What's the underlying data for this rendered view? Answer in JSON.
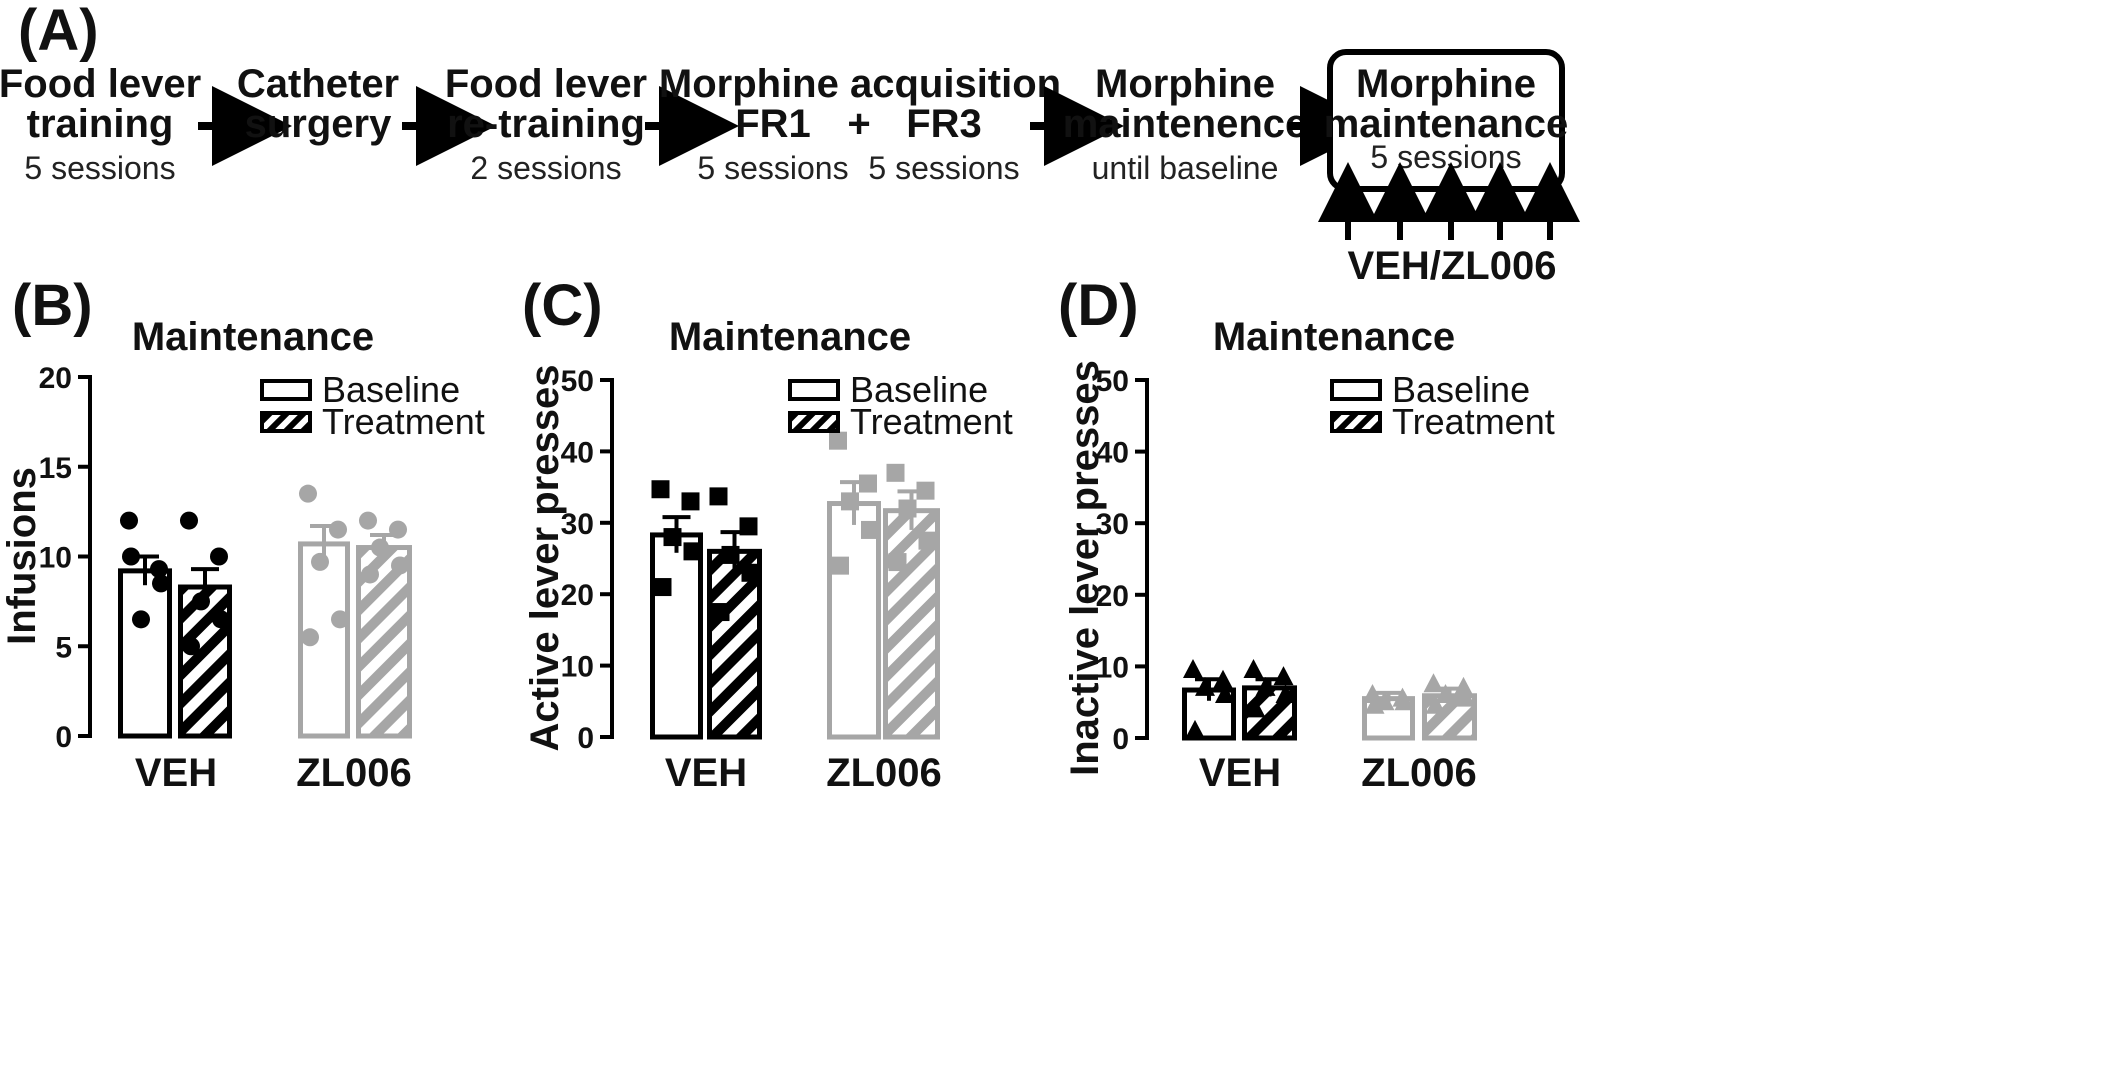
{
  "panel_a": {
    "letter": "(A)",
    "steps": [
      {
        "title1": "Food lever",
        "title2": "training",
        "sub": "5 sessions"
      },
      {
        "title1": "Catheter",
        "title2": "surgery",
        "sub": ""
      },
      {
        "title1": "Food lever",
        "title2": "re-training",
        "sub": "2 sessions"
      },
      {
        "title1": "Morphine acquisition",
        "fr1": "FR1",
        "plus": "+",
        "fr3": "FR3",
        "sub1": "5 sessions",
        "sub2": "5 sessions"
      },
      {
        "title1": "Morphine",
        "title2": "maintenence",
        "sub": "until baseline"
      },
      {
        "title1": "Morphine",
        "title2": "maintenance",
        "sub": "5 sessions"
      }
    ],
    "injection_label": "VEH/ZL006"
  },
  "colors": {
    "veh": "#000000",
    "zl006": "#a6a6a6"
  },
  "chart_data": [
    {
      "type": "bar",
      "letter": "(B)",
      "title": "Maintenance",
      "ylabel": "Infusions",
      "ylim": [
        0,
        20
      ],
      "yticks": [
        0,
        5,
        10,
        15,
        20
      ],
      "categories": [
        "VEH",
        "ZL006"
      ],
      "legend": [
        "Baseline",
        "Treatment"
      ],
      "legend_position": "top-right",
      "marker": "circle",
      "series": [
        {
          "name": "Baseline",
          "values": [
            9.2,
            10.7
          ],
          "sem": [
            0.8,
            1.0
          ],
          "points": [
            [
              12.0,
              9.3,
              6.5,
              8.5,
              10.0
            ],
            [
              13.5,
              11.5,
              9.7,
              6.5,
              5.5
            ]
          ]
        },
        {
          "name": "Treatment",
          "values": [
            8.3,
            10.5
          ],
          "sem": [
            1.0,
            0.7
          ],
          "points": [
            [
              12.0,
              10.0,
              7.5,
              6.5,
              5.0
            ],
            [
              12.0,
              11.5,
              10.5,
              9.5,
              9.0
            ]
          ]
        }
      ]
    },
    {
      "type": "bar",
      "letter": "(C)",
      "title": "Maintenance",
      "ylabel": "Active lever presses",
      "ylim": [
        0,
        50
      ],
      "yticks": [
        0,
        10,
        20,
        30,
        40,
        50
      ],
      "categories": [
        "VEH",
        "ZL006"
      ],
      "legend": [
        "Baseline",
        "Treatment"
      ],
      "legend_position": "top-right",
      "marker": "square",
      "series": [
        {
          "name": "Baseline",
          "values": [
            28.3,
            32.7
          ],
          "sem": [
            2.5,
            3.0
          ],
          "points": [
            [
              34.7,
              33.0,
              28.0,
              26.0,
              21.0
            ],
            [
              41.5,
              35.5,
              33.0,
              29.0,
              24.0
            ]
          ]
        },
        {
          "name": "Treatment",
          "values": [
            26.0,
            31.7
          ],
          "sem": [
            2.7,
            2.7
          ],
          "points": [
            [
              33.7,
              29.5,
              25.5,
              23.0,
              17.5
            ],
            [
              37.0,
              34.5,
              32.0,
              27.5,
              24.5
            ]
          ]
        }
      ]
    },
    {
      "type": "bar",
      "letter": "(D)",
      "title": "Maintenance",
      "ylabel": "Inactive lever presses",
      "ylim": [
        0,
        50
      ],
      "yticks": [
        0,
        10,
        20,
        30,
        40,
        50
      ],
      "categories": [
        "VEH",
        "ZL006"
      ],
      "legend": [
        "Baseline",
        "Treatment"
      ],
      "legend_position": "top-right",
      "marker": "triangle",
      "series": [
        {
          "name": "Baseline",
          "values": [
            6.7,
            5.5
          ],
          "sem": [
            1.5,
            0.8
          ],
          "points": [
            [
              9.5,
              8.0,
              7.0,
              6.0,
              1.0
            ],
            [
              6.0,
              5.5,
              5.0,
              5.0,
              4.5
            ]
          ]
        },
        {
          "name": "Treatment",
          "values": [
            7.0,
            5.9
          ],
          "sem": [
            1.2,
            1.0
          ],
          "points": [
            [
              9.5,
              8.5,
              7.0,
              6.0,
              4.0
            ],
            [
              7.5,
              7.0,
              6.0,
              5.5,
              4.5
            ]
          ]
        }
      ]
    }
  ]
}
